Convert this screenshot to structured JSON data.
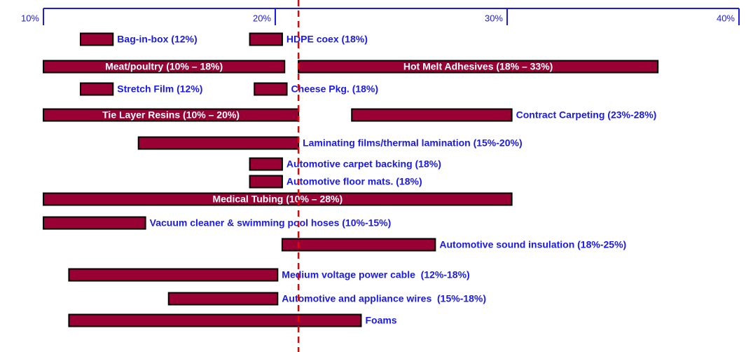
{
  "chart_data": {
    "type": "range_bar",
    "xlim": [
      10,
      40
    ],
    "xticks": [
      {
        "value": 10,
        "label": "10%"
      },
      {
        "value": 20,
        "label": "20%"
      },
      {
        "value": 30,
        "label": "30%"
      },
      {
        "value": 40,
        "label": "40%"
      }
    ],
    "color": "#990033",
    "label_color": "#1a1aee",
    "reference_line": 21.0,
    "reference_color": "#ee0000",
    "rows": [
      [
        {
          "label": "Bag-in-box (12%)",
          "start": 11.6,
          "end": 13.0,
          "label_position": "right"
        },
        {
          "label": "HDPE coex (18%)",
          "start": 18.9,
          "end": 20.3,
          "label_position": "right"
        }
      ],
      [
        {
          "label": "Meat/poultry (10% – 18%)",
          "start": 10,
          "end": 20.4,
          "label_position": "inside"
        },
        {
          "label": "Hot Melt Adhesives (18% – 33%)",
          "start": 21.0,
          "end": 36.5,
          "label_position": "inside"
        }
      ],
      [
        {
          "label": "Stretch Film (12%)",
          "start": 11.6,
          "end": 13.0,
          "label_position": "right"
        },
        {
          "label": "Cheese Pkg. (18%)",
          "start": 19.1,
          "end": 20.5,
          "label_position": "right"
        }
      ],
      [
        {
          "label": "Tie Layer Resins (10% – 20%)",
          "start": 10,
          "end": 21.0,
          "label_position": "inside"
        },
        {
          "label": "Contract Carpeting (23%-28%)",
          "start": 23.3,
          "end": 30.2,
          "label_position": "right"
        }
      ],
      [
        {
          "label": "Laminating films/thermal lamination (15%-20%)",
          "start": 14.1,
          "end": 21.0,
          "label_position": "right"
        }
      ],
      [
        {
          "label": "Automotive carpet backing (18%)",
          "start": 18.9,
          "end": 20.3,
          "label_position": "right"
        }
      ],
      [
        {
          "label": "Automotive floor mats. (18%)",
          "start": 18.9,
          "end": 20.3,
          "label_position": "right"
        }
      ],
      [
        {
          "label": "Medical Tubing (10% – 28%)",
          "start": 10,
          "end": 30.2,
          "label_position": "inside"
        }
      ],
      [
        {
          "label": "Vacuum cleaner & swimming pool hoses (10%-15%)",
          "start": 10,
          "end": 14.4,
          "label_position": "right"
        }
      ],
      [
        {
          "label": "Automotive sound insulation (18%-25%)",
          "start": 20.3,
          "end": 26.9,
          "label_position": "right"
        }
      ],
      [
        {
          "label": "Medium voltage power cable  (12%-18%)",
          "start": 11.1,
          "end": 20.1,
          "label_position": "right"
        }
      ],
      [
        {
          "label": "Automotive and appliance wires  (15%-18%)",
          "start": 15.4,
          "end": 20.1,
          "label_position": "right"
        }
      ],
      [
        {
          "label": "Foams",
          "start": 11.1,
          "end": 23.7,
          "label_position": "right"
        }
      ]
    ]
  }
}
